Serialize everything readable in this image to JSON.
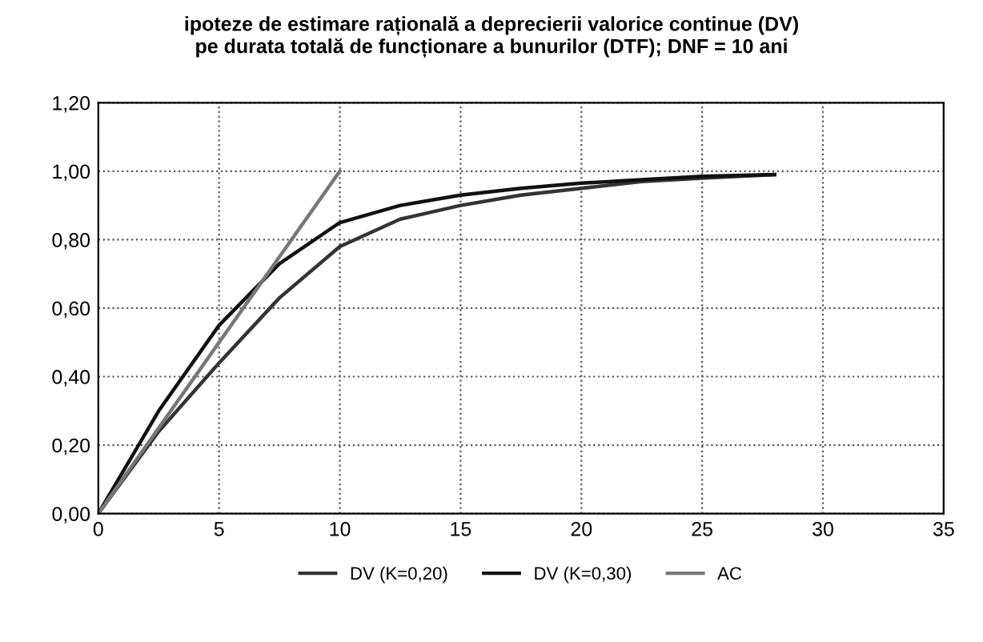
{
  "chart_data": {
    "type": "line",
    "title": "ipoteze de estimare rațională a deprecierii valorice continue (DV)\npe durata totală de funcționare a bunurilor (DTF); DNF = 10 ani",
    "series": [
      {
        "name": "DV (K=0,20)",
        "color": "#333333",
        "x": [
          0,
          2.5,
          5,
          7.5,
          10,
          12.5,
          15,
          17.5,
          20,
          22.5,
          25,
          28
        ],
        "values": [
          0,
          0.24,
          0.44,
          0.63,
          0.78,
          0.86,
          0.9,
          0.93,
          0.95,
          0.97,
          0.98,
          0.99
        ]
      },
      {
        "name": "DV (K=0,30)",
        "color": "#111111",
        "x": [
          0,
          2.5,
          5,
          7.5,
          10,
          12.5,
          15,
          17.5,
          20,
          22.5,
          25,
          28
        ],
        "values": [
          0,
          0.3,
          0.55,
          0.73,
          0.85,
          0.9,
          0.93,
          0.95,
          0.965,
          0.975,
          0.985,
          0.99
        ]
      },
      {
        "name": "AC",
        "color": "#777777",
        "x": [
          0,
          10
        ],
        "values": [
          0,
          1
        ]
      }
    ],
    "xlim": [
      0,
      35
    ],
    "xticks": [
      0,
      5,
      10,
      15,
      20,
      25,
      30,
      35
    ],
    "ylim": [
      0,
      1.2
    ],
    "yticks": [
      {
        "value": 0,
        "label": "0,00"
      },
      {
        "value": 0.2,
        "label": "0,20"
      },
      {
        "value": 0.4,
        "label": "0,40"
      },
      {
        "value": 0.6,
        "label": "0,60"
      },
      {
        "value": 0.8,
        "label": "0,80"
      },
      {
        "value": 1.0,
        "label": "1,00"
      },
      {
        "value": 1.2,
        "label": "1,20"
      }
    ],
    "grid": true,
    "legend": "bottom",
    "marker": "none",
    "line_style": "solid"
  }
}
